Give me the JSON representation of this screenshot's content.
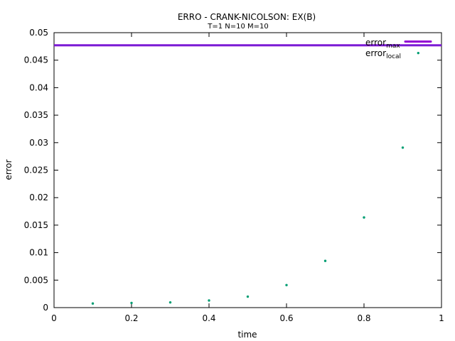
{
  "chart_data": {
    "type": "scatter",
    "title": "ERRO - CRANK-NICOLSON: EX(B)",
    "subtitle": "T=1 N=10 M=10",
    "xlabel": "time",
    "ylabel": "error",
    "xlim": [
      0,
      1
    ],
    "ylim": [
      0,
      0.05
    ],
    "xticks": [
      "0",
      "0.2",
      "0.4",
      "0.6",
      "0.8",
      "1"
    ],
    "yticks": [
      "0",
      "0.005",
      "0.01",
      "0.015",
      "0.02",
      "0.025",
      "0.03",
      "0.035",
      "0.04",
      "0.045",
      "0.05"
    ],
    "grid": false,
    "legend_position": "top-right",
    "series": [
      {
        "name": "error",
        "name_sub": "max",
        "kind": "line",
        "color": "#9400d3",
        "x": [
          0,
          1
        ],
        "y": [
          0.0477,
          0.0477
        ]
      },
      {
        "name": "error",
        "name_sub": "local",
        "kind": "points",
        "color": "#009e73",
        "x": [
          0.1,
          0.2,
          0.3,
          0.4,
          0.5,
          0.6,
          0.7,
          0.8,
          0.9,
          0.94
        ],
        "y": [
          0.00075,
          0.00085,
          0.00095,
          0.0013,
          0.002,
          0.0041,
          0.0085,
          0.0164,
          0.0291,
          0.0463
        ]
      }
    ]
  }
}
